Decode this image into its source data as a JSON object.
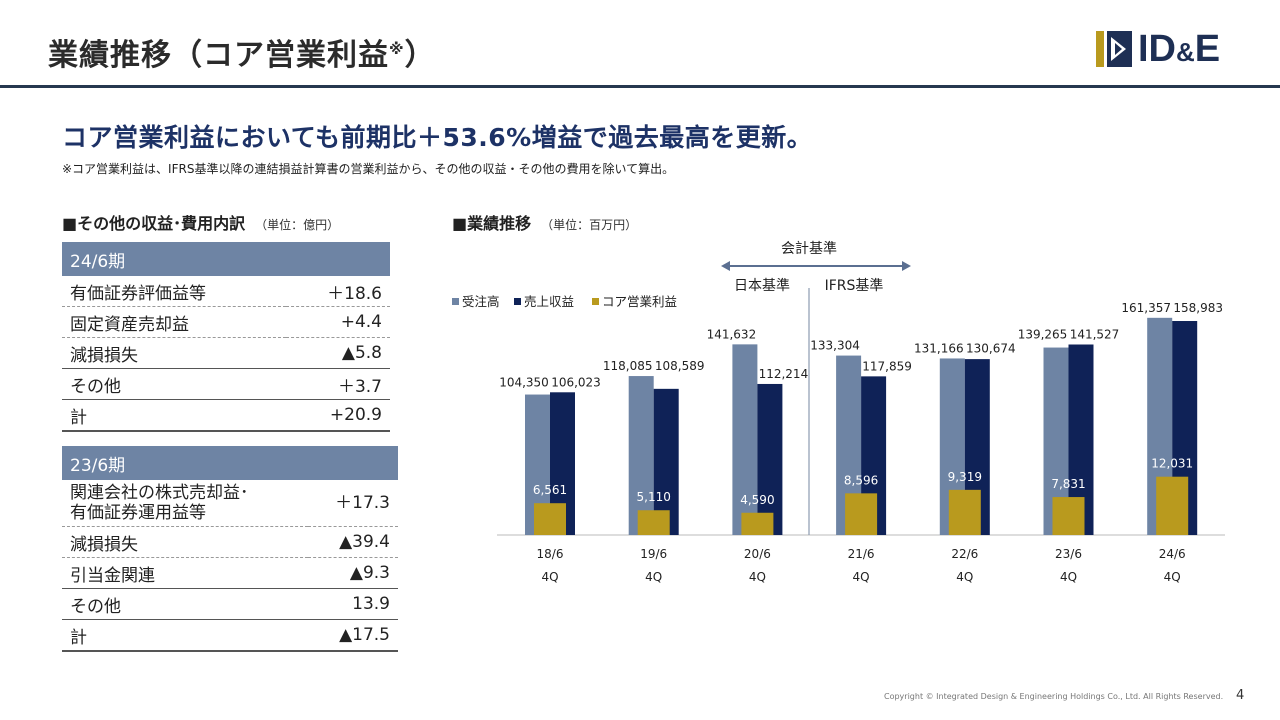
{
  "header": {
    "title": "業績推移（コア営業利益",
    "title_mark": "※",
    "title_close": "）",
    "logo_text": "ID",
    "logo_amp": "&",
    "logo_text_end": "E"
  },
  "headline": "コア営業利益においても前期比＋53.6%増益で過去最高を更新。",
  "footnote": "※コア営業利益は、IFRS基準以降の連結損益計算書の営業利益から、その他の収益・その他の費用を除いて算出。",
  "left_section": {
    "title": "■その他の収益･費用内訳",
    "unit": "（単位：億円）",
    "table1": {
      "period": "24/6期",
      "rows": [
        {
          "label": "有価証券評価益等",
          "value": "＋18.6"
        },
        {
          "label": "固定資産売却益",
          "value": "+4.4"
        },
        {
          "label": "減損損失",
          "value": "▲5.8"
        },
        {
          "label": "その他",
          "value": "＋3.7"
        },
        {
          "label": "計",
          "value": "+20.9"
        }
      ]
    },
    "table2": {
      "period": "23/6期",
      "rows": [
        {
          "label": "関連会社の株式売却益･",
          "label2": "有価証券運用益等",
          "value": "＋17.3"
        },
        {
          "label": "減損損失",
          "value": "▲39.4"
        },
        {
          "label": "引当金関連",
          "value": "▲9.3"
        },
        {
          "label": "その他",
          "value": "13.9"
        },
        {
          "label": "計",
          "value": "▲17.5"
        }
      ]
    }
  },
  "right_section": {
    "title": "■業績推移",
    "unit": "（単位：百万円）"
  },
  "colors": {
    "orders": "#6e84a4",
    "revenue": "#0f2257",
    "core": "#b99a1e",
    "header_rule": "#26384f",
    "headline": "#1d3266"
  },
  "chart_data": {
    "type": "bar",
    "categories": [
      "18/6",
      "19/6",
      "20/6",
      "21/6",
      "22/6",
      "23/6",
      "24/6"
    ],
    "category_sub": "4Q",
    "series": [
      {
        "name": "受注高",
        "values": [
          104350,
          118085,
          141632,
          133304,
          131166,
          139265,
          161357
        ],
        "labels": [
          "104,350",
          "118,085",
          "141,632",
          "133,304",
          "131,166",
          "139,265",
          "161,357"
        ]
      },
      {
        "name": "売上収益",
        "values": [
          106023,
          108589,
          112214,
          117859,
          130674,
          141527,
          158983
        ],
        "labels": [
          "106,023",
          "108,589",
          "112,214",
          "117,859",
          "130,674",
          "141,527",
          "158,983"
        ]
      },
      {
        "name": "コア営業利益",
        "values": [
          6561,
          5110,
          4590,
          8596,
          9319,
          7831,
          12031
        ],
        "labels": [
          "6,561",
          "5,110",
          "4,590",
          "8,596",
          "9,319",
          "7,831",
          "12,031"
        ]
      }
    ],
    "annotation": {
      "title": "会計基準",
      "left_label": "日本基準",
      "right_label": "IFRS基準"
    }
  },
  "footer": {
    "copyright": "Copyright © Integrated Design & Engineering Holdings Co., Ltd.  All Rights Reserved.",
    "page": "4"
  }
}
